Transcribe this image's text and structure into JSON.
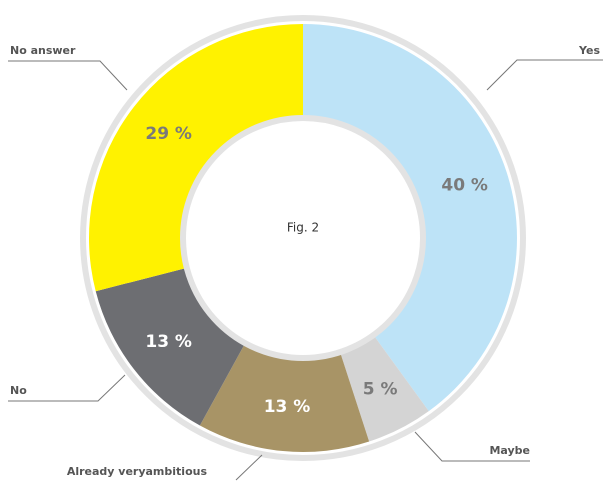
{
  "chart_data": {
    "type": "donut",
    "center_text": "Fig. 2",
    "categories": [
      "Yes",
      "Maybe",
      "Already veryambitious",
      "No",
      "No answer"
    ],
    "values": [
      40,
      5,
      13,
      13,
      29
    ],
    "value_labels": [
      "40 %",
      "5 %",
      "13 %",
      "13 %",
      "29 %"
    ],
    "colors": [
      "#bde3f7",
      "#d4d4d4",
      "#a89466",
      "#6d6e72",
      "#fff200"
    ]
  }
}
